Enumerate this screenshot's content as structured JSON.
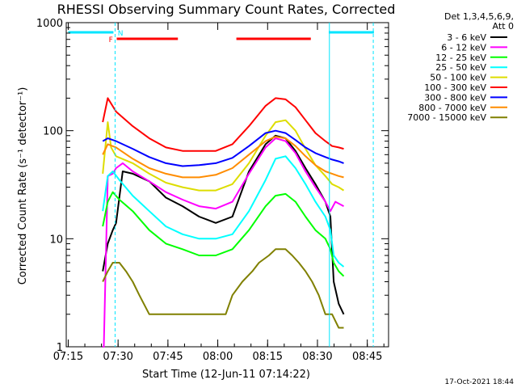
{
  "chart_data": {
    "type": "line",
    "title": "RHESSI Observing Summary Count Rates, Corrected",
    "xlabel": "Start Time (12-Jun-11 07:14:22)",
    "ylabel": "Corrected Count Rate (s⁻¹ detector⁻¹)",
    "y_scale": "log",
    "ylim": [
      1,
      1000
    ],
    "xlim_minutes": [
      0,
      97
    ],
    "x_ticks": [
      {
        "label": "07:15",
        "minute": 0.6
      },
      {
        "label": "07:30",
        "minute": 15.6
      },
      {
        "label": "07:45",
        "minute": 30.6
      },
      {
        "label": "08:00",
        "minute": 45.6
      },
      {
        "label": "08:15",
        "minute": 60.6
      },
      {
        "label": "08:30",
        "minute": 75.6
      },
      {
        "label": "08:45",
        "minute": 90.6
      }
    ],
    "y_ticks": [
      {
        "label": "1",
        "value": 1
      },
      {
        "label": "10",
        "value": 10
      },
      {
        "label": "100",
        "value": 100
      },
      {
        "label": "1000",
        "value": 1000
      }
    ],
    "legend_header": [
      "Det 1,3,4,5,6,9,",
      "Att 0"
    ],
    "legend_position": "right",
    "series": [
      {
        "name": "3 - 6 keV",
        "color": "#000000",
        "points": [
          [
            11.0,
            5
          ],
          [
            12.5,
            9
          ],
          [
            14.0,
            12
          ],
          [
            15.0,
            14
          ],
          [
            17.0,
            42
          ],
          [
            20.0,
            40
          ],
          [
            25.0,
            34
          ],
          [
            30.0,
            24
          ],
          [
            35.0,
            20
          ],
          [
            40.0,
            16
          ],
          [
            45.0,
            14
          ],
          [
            50.0,
            16
          ],
          [
            55.0,
            42
          ],
          [
            60.0,
            75
          ],
          [
            63.0,
            90
          ],
          [
            66.0,
            85
          ],
          [
            69.0,
            65
          ],
          [
            72.0,
            45
          ],
          [
            75.0,
            32
          ],
          [
            78.0,
            22
          ],
          [
            79.5,
            16
          ],
          [
            80.5,
            4
          ],
          [
            82.0,
            2.5
          ],
          [
            83.5,
            2
          ]
        ]
      },
      {
        "name": "6 - 12 keV",
        "color": "#ff00ff",
        "points": [
          [
            11.0,
            1
          ],
          [
            11.3,
            1
          ],
          [
            12.5,
            38
          ],
          [
            14.0,
            40
          ],
          [
            15.0,
            45
          ],
          [
            17.0,
            50
          ],
          [
            20.0,
            42
          ],
          [
            25.0,
            34
          ],
          [
            30.0,
            27
          ],
          [
            35.0,
            23
          ],
          [
            40.0,
            20
          ],
          [
            45.0,
            19
          ],
          [
            50.0,
            22
          ],
          [
            55.0,
            40
          ],
          [
            60.0,
            70
          ],
          [
            63.0,
            85
          ],
          [
            66.0,
            80
          ],
          [
            69.0,
            62
          ],
          [
            72.0,
            42
          ],
          [
            75.0,
            30
          ],
          [
            78.0,
            22
          ],
          [
            79.5,
            18
          ],
          [
            81.0,
            22
          ],
          [
            83.5,
            20
          ]
        ]
      },
      {
        "name": "12 - 25 keV",
        "color": "#00ff00",
        "points": [
          [
            11.0,
            13
          ],
          [
            12.5,
            22
          ],
          [
            14.0,
            27
          ],
          [
            16.0,
            23
          ],
          [
            20.0,
            18
          ],
          [
            25.0,
            12
          ],
          [
            30.0,
            9
          ],
          [
            35.0,
            8
          ],
          [
            40.0,
            7
          ],
          [
            45.0,
            7
          ],
          [
            50.0,
            8
          ],
          [
            55.0,
            12
          ],
          [
            60.0,
            20
          ],
          [
            63.0,
            25
          ],
          [
            66.0,
            26
          ],
          [
            69.0,
            22
          ],
          [
            72.0,
            16
          ],
          [
            75.0,
            12
          ],
          [
            78.0,
            10
          ],
          [
            79.5,
            8
          ],
          [
            80.5,
            6
          ],
          [
            82.0,
            5
          ],
          [
            83.5,
            4.5
          ]
        ]
      },
      {
        "name": "25 - 50 keV",
        "color": "#00ffff",
        "points": [
          [
            11.0,
            18
          ],
          [
            12.5,
            38
          ],
          [
            14.0,
            42
          ],
          [
            16.0,
            35
          ],
          [
            20.0,
            25
          ],
          [
            25.0,
            18
          ],
          [
            30.0,
            13
          ],
          [
            35.0,
            11
          ],
          [
            40.0,
            10
          ],
          [
            45.0,
            10
          ],
          [
            50.0,
            11
          ],
          [
            55.0,
            18
          ],
          [
            60.0,
            35
          ],
          [
            63.0,
            55
          ],
          [
            66.0,
            58
          ],
          [
            69.0,
            45
          ],
          [
            72.0,
            32
          ],
          [
            75.0,
            22
          ],
          [
            78.0,
            16
          ],
          [
            79.5,
            12
          ],
          [
            80.5,
            7
          ],
          [
            82.0,
            6
          ],
          [
            83.5,
            5.5
          ]
        ]
      },
      {
        "name": "50 - 100 keV",
        "color": "#dddd00",
        "points": [
          [
            11.0,
            40
          ],
          [
            12.5,
            120
          ],
          [
            13.5,
            70
          ],
          [
            15.0,
            58
          ],
          [
            20.0,
            50
          ],
          [
            25.0,
            40
          ],
          [
            30.0,
            33
          ],
          [
            35.0,
            30
          ],
          [
            40.0,
            28
          ],
          [
            45.0,
            28
          ],
          [
            50.0,
            32
          ],
          [
            55.0,
            50
          ],
          [
            60.0,
            90
          ],
          [
            63.0,
            120
          ],
          [
            66.0,
            125
          ],
          [
            69.0,
            100
          ],
          [
            72.0,
            68
          ],
          [
            75.0,
            48
          ],
          [
            78.0,
            38
          ],
          [
            80.0,
            32
          ],
          [
            82.0,
            30
          ],
          [
            83.5,
            28
          ]
        ]
      },
      {
        "name": "100 - 300 keV",
        "color": "#ff0000",
        "points": [
          [
            11.0,
            120
          ],
          [
            12.5,
            200
          ],
          [
            15.0,
            150
          ],
          [
            20.0,
            110
          ],
          [
            25.0,
            85
          ],
          [
            30.0,
            70
          ],
          [
            35.0,
            65
          ],
          [
            40.0,
            65
          ],
          [
            45.0,
            65
          ],
          [
            50.0,
            75
          ],
          [
            55.0,
            110
          ],
          [
            60.0,
            170
          ],
          [
            63.0,
            200
          ],
          [
            66.0,
            195
          ],
          [
            69.0,
            165
          ],
          [
            72.0,
            125
          ],
          [
            75.0,
            95
          ],
          [
            78.0,
            80
          ],
          [
            80.0,
            72
          ],
          [
            82.0,
            70
          ],
          [
            83.5,
            68
          ]
        ]
      },
      {
        "name": "300 - 800 keV",
        "color": "#0000ff",
        "points": [
          [
            11.0,
            80
          ],
          [
            12.5,
            85
          ],
          [
            15.0,
            80
          ],
          [
            20.0,
            68
          ],
          [
            25.0,
            57
          ],
          [
            30.0,
            50
          ],
          [
            35.0,
            47
          ],
          [
            40.0,
            48
          ],
          [
            45.0,
            50
          ],
          [
            50.0,
            56
          ],
          [
            55.0,
            72
          ],
          [
            60.0,
            95
          ],
          [
            63.0,
            100
          ],
          [
            66.0,
            95
          ],
          [
            69.0,
            82
          ],
          [
            72.0,
            70
          ],
          [
            75.0,
            62
          ],
          [
            78.0,
            57
          ],
          [
            80.0,
            54
          ],
          [
            82.0,
            52
          ],
          [
            83.5,
            50
          ]
        ]
      },
      {
        "name": "800 - 7000 keV",
        "color": "#ff8c00",
        "points": [
          [
            11.0,
            60
          ],
          [
            12.5,
            75
          ],
          [
            15.0,
            70
          ],
          [
            20.0,
            55
          ],
          [
            25.0,
            45
          ],
          [
            30.0,
            40
          ],
          [
            35.0,
            37
          ],
          [
            40.0,
            37
          ],
          [
            45.0,
            39
          ],
          [
            50.0,
            45
          ],
          [
            55.0,
            60
          ],
          [
            60.0,
            80
          ],
          [
            63.0,
            88
          ],
          [
            66.0,
            85
          ],
          [
            69.0,
            72
          ],
          [
            72.0,
            58
          ],
          [
            75.0,
            48
          ],
          [
            78.0,
            42
          ],
          [
            80.0,
            40
          ],
          [
            82.0,
            38
          ],
          [
            83.5,
            37
          ]
        ]
      },
      {
        "name": "7000 - 15000 keV",
        "color": "#808000",
        "points": [
          [
            11.0,
            4
          ],
          [
            12.5,
            5
          ],
          [
            14.0,
            6
          ],
          [
            16.0,
            6
          ],
          [
            18.0,
            5
          ],
          [
            20.0,
            4
          ],
          [
            22.0,
            3
          ],
          [
            25.0,
            2
          ],
          [
            30.0,
            2
          ],
          [
            35.0,
            2
          ],
          [
            40.0,
            2
          ],
          [
            45.0,
            2
          ],
          [
            48.0,
            2
          ],
          [
            50.0,
            3
          ],
          [
            53.0,
            4
          ],
          [
            56.0,
            5
          ],
          [
            58.0,
            6
          ],
          [
            61.0,
            7
          ],
          [
            63.0,
            8
          ],
          [
            66.0,
            8
          ],
          [
            68.0,
            7
          ],
          [
            70.0,
            6
          ],
          [
            72.0,
            5
          ],
          [
            74.0,
            4
          ],
          [
            76.0,
            3
          ],
          [
            78.0,
            2
          ],
          [
            80.0,
            2
          ],
          [
            82.0,
            1.5
          ],
          [
            83.5,
            1.5
          ]
        ]
      }
    ],
    "flag_bars": [
      {
        "label": "",
        "color": "#00e5ff",
        "segments": [
          [
            0.6,
            14.2
          ],
          [
            79.0,
            92.6
          ]
        ]
      },
      {
        "label": "N",
        "color": "#00e5ff",
        "segments": []
      },
      {
        "label": "F",
        "color": "#ff0000",
        "segments": [
          [
            15.2,
            33.6
          ],
          [
            51.2,
            73.6
          ]
        ]
      }
    ],
    "vertical_markers": [
      {
        "minute": 14.7,
        "color": "#00e5ff",
        "style": "dashed"
      },
      {
        "minute": 79.2,
        "color": "#00e5ff",
        "style": "solid"
      },
      {
        "minute": 92.4,
        "color": "#00e5ff",
        "style": "dashed"
      }
    ]
  },
  "footer": {
    "date_stamp": "17-Oct-2021 18:44"
  }
}
